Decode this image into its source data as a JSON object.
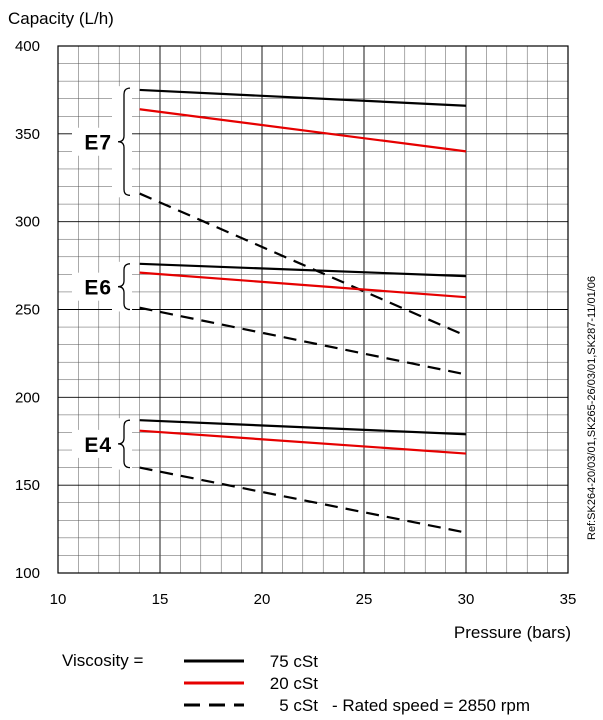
{
  "chart_data": {
    "type": "line",
    "ylabel": "Capacity (L/h)",
    "xlabel": "Pressure (bars)",
    "xlim": [
      10,
      35
    ],
    "ylim": [
      100,
      400
    ],
    "x_ticks": [
      10,
      15,
      20,
      25,
      30,
      35
    ],
    "y_ticks": [
      100,
      150,
      200,
      250,
      300,
      350,
      400
    ],
    "grid": true,
    "legend_label": "Viscosity =",
    "legend": [
      {
        "key": "75",
        "label": "75 cSt",
        "color": "#000000",
        "dash": "solid"
      },
      {
        "key": "20",
        "label": "20 cSt",
        "color": "#e60000",
        "dash": "solid"
      },
      {
        "key": "5",
        "label": "5 cSt",
        "suffix": "-  Rated speed = 2850 rpm",
        "color": "#000000",
        "dash": "dashed"
      }
    ],
    "groups": [
      {
        "name": "E7",
        "bracket": [
          315,
          376
        ],
        "series": [
          {
            "viscosity": "75",
            "x": [
              14,
              30
            ],
            "y": [
              375,
              366
            ]
          },
          {
            "viscosity": "20",
            "x": [
              14,
              30
            ],
            "y": [
              364,
              340
            ]
          },
          {
            "viscosity": "5",
            "x": [
              14,
              30
            ],
            "y": [
              316,
              235
            ]
          }
        ]
      },
      {
        "name": "E6",
        "bracket": [
          250,
          276
        ],
        "series": [
          {
            "viscosity": "75",
            "x": [
              14,
              30
            ],
            "y": [
              276,
              269
            ]
          },
          {
            "viscosity": "20",
            "x": [
              14,
              30
            ],
            "y": [
              271,
              257
            ]
          },
          {
            "viscosity": "5",
            "x": [
              14,
              30
            ],
            "y": [
              251,
              213
            ]
          }
        ]
      },
      {
        "name": "E4",
        "bracket": [
          160,
          187
        ],
        "series": [
          {
            "viscosity": "75",
            "x": [
              14,
              30
            ],
            "y": [
              187,
              179
            ]
          },
          {
            "viscosity": "20",
            "x": [
              14,
              30
            ],
            "y": [
              181,
              168
            ]
          },
          {
            "viscosity": "5",
            "x": [
              14,
              30
            ],
            "y": [
              160,
              123
            ]
          }
        ]
      }
    ],
    "side_note": "Ref:SK264-20/03/01,SK265-26/03/01,SK287-11/01/06"
  }
}
